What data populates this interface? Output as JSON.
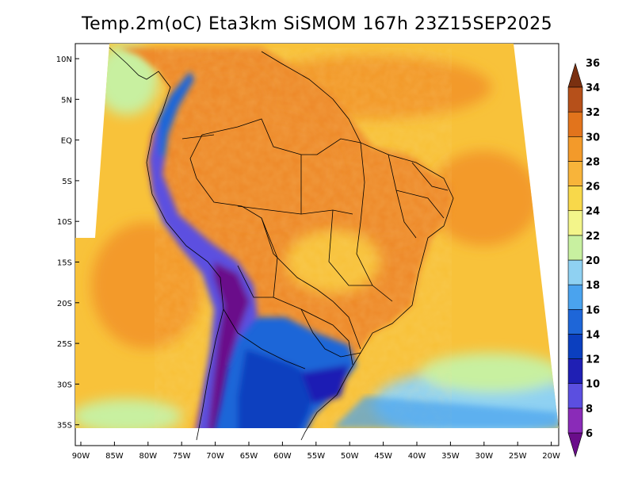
{
  "title": "Temp.2m(oC) Eta3km SiSMOM 167h 23Z15SEP2025",
  "lat_labels": [
    "10N",
    "5N",
    "EQ",
    "5S",
    "10S",
    "15S",
    "20S",
    "25S",
    "30S",
    "35S"
  ],
  "lon_labels": [
    "90W",
    "85W",
    "80W",
    "75W",
    "70W",
    "65W",
    "60W",
    "55W",
    "50W",
    "45W",
    "40W",
    "35W",
    "30W",
    "25W",
    "20W"
  ],
  "colorbar": {
    "labels": [
      "6",
      "8",
      "10",
      "12",
      "14",
      "16",
      "18",
      "20",
      "22",
      "24",
      "26",
      "28",
      "30",
      "32",
      "34",
      "36"
    ],
    "colors": [
      "#6a0d8a",
      "#8a2bb8",
      "#5b4fe0",
      "#1f1fb4",
      "#0b3fbf",
      "#1e66d8",
      "#4aa3ee",
      "#8fd1f2",
      "#c8f0a0",
      "#f3f58a",
      "#f8d84a",
      "#f8b43a",
      "#f39a2a",
      "#e2741c",
      "#b6501a",
      "#7a3010"
    ],
    "unit": "oC"
  },
  "colors": {
    "ocean_warm": "#f8c23a",
    "ocean_hot": "#f39a2a",
    "land_hot": "#ee8a2a",
    "land_mild": "#f8d84a",
    "andes_cold": "#5b4fe0",
    "south_cold": "#1e66d8",
    "south_ocean": "#8fd1f2"
  }
}
